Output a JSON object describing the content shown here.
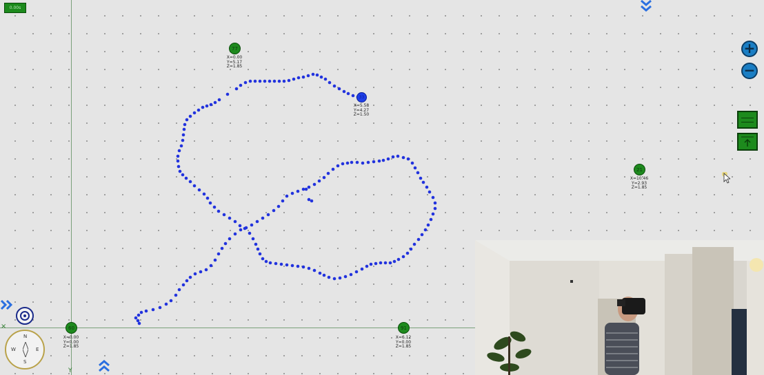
{
  "top_badge": "0.00s",
  "anchors": [
    {
      "id": "77",
      "x": "X=0.00",
      "y": "Y=5.17",
      "z": "Z=1.85"
    },
    {
      "id": "21",
      "x": "X=10.46",
      "y": "Y=2.93",
      "z": "Z=1.85"
    },
    {
      "id": "60",
      "x": "X=0.00",
      "y": "Y=0.00",
      "z": "Z=1.85"
    },
    {
      "id": "91",
      "x": "X=6.12",
      "y": "Y=0.00",
      "z": "Z=1.85"
    }
  ],
  "tag": {
    "id": "33",
    "x": "X=5.58",
    "y": "Y=4.27",
    "z": "Z=1.50"
  },
  "axis": {
    "x_mark": "×",
    "y_mark": "Y"
  },
  "compass": {
    "n": "N",
    "s": "S",
    "e": "E",
    "w": "W"
  },
  "zoom": {
    "in": "+",
    "out": "−"
  },
  "icons": {
    "zoom_in": "plus-icon",
    "zoom_out": "minus-icon",
    "collapse_top": "double-chevron-down-icon",
    "expand_bottom": "double-chevron-up-icon",
    "expand_left": "double-chevron-right-icon",
    "target": "target-icon",
    "compass": "compass-icon",
    "cursor": "mouse-cursor-icon"
  },
  "colors": {
    "anchor": "#1e8a1e",
    "tag": "#1f3fe8",
    "trail": "#2233dd",
    "zoom": "#1a7ec4",
    "background": "#e5e5e5"
  }
}
